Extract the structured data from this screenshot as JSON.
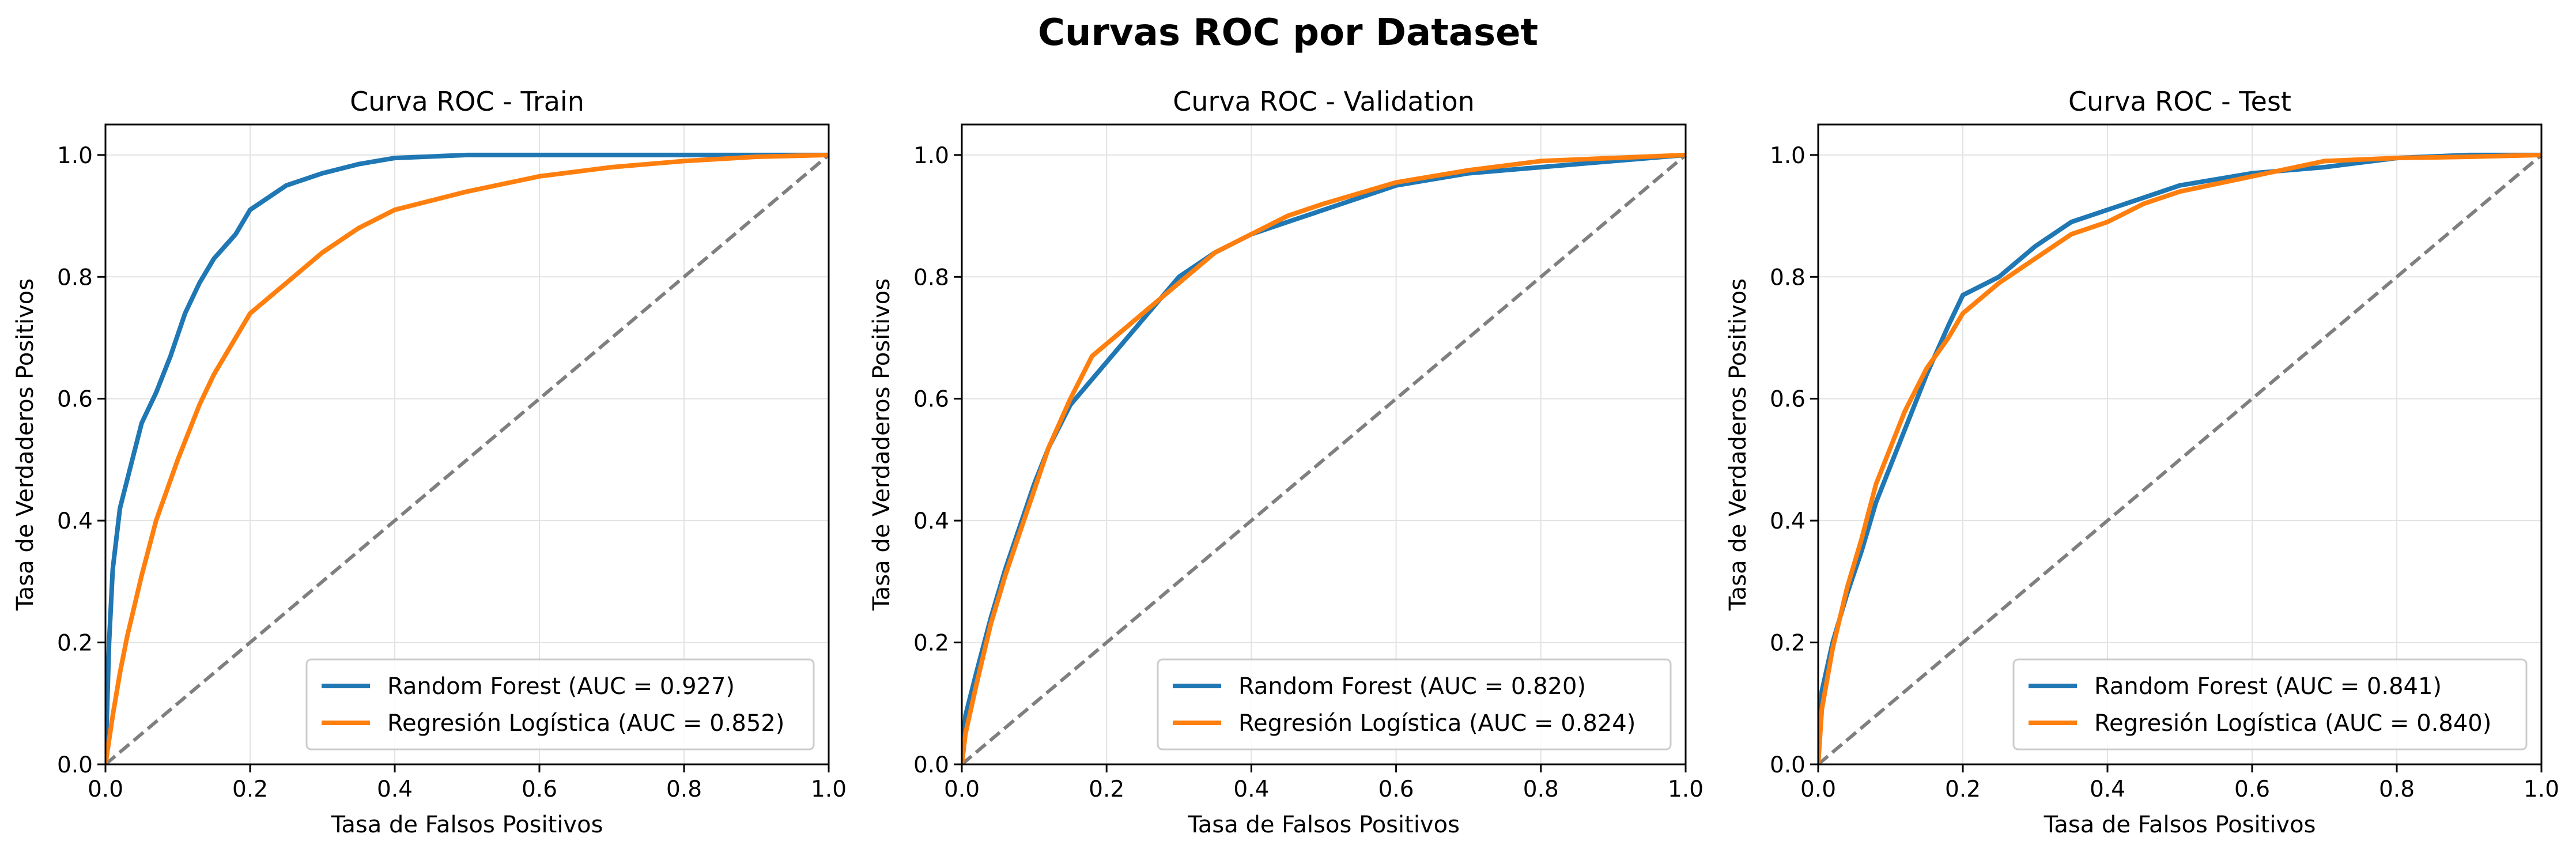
{
  "figure_title": "Curvas ROC por Dataset",
  "colors": {
    "random_forest": "#1f77b4",
    "logistic_regression": "#ff7f0e",
    "diagonal": "#7f7f7f",
    "grid": "#e3e3e3"
  },
  "chart_data": [
    {
      "type": "line",
      "title": "Curva ROC - Train",
      "xlabel": "Tasa de Falsos Positivos",
      "ylabel": "Tasa de Verdaderos Positivos",
      "xlim": [
        0,
        1
      ],
      "ylim": [
        0,
        1.05
      ],
      "xticks": [
        "0.0",
        "0.2",
        "0.4",
        "0.6",
        "0.8",
        "1.0"
      ],
      "yticks": [
        "0.0",
        "0.2",
        "0.4",
        "0.6",
        "0.8",
        "1.0"
      ],
      "grid": true,
      "legend_position": "lower-right",
      "series": [
        {
          "name": "Random Forest (AUC = 0.927)",
          "color": "#1f77b4",
          "points": [
            [
              0,
              0
            ],
            [
              0.005,
              0.2
            ],
            [
              0.01,
              0.32
            ],
            [
              0.02,
              0.42
            ],
            [
              0.035,
              0.49
            ],
            [
              0.05,
              0.56
            ],
            [
              0.07,
              0.61
            ],
            [
              0.09,
              0.67
            ],
            [
              0.11,
              0.74
            ],
            [
              0.13,
              0.79
            ],
            [
              0.15,
              0.83
            ],
            [
              0.18,
              0.87
            ],
            [
              0.2,
              0.91
            ],
            [
              0.25,
              0.95
            ],
            [
              0.3,
              0.97
            ],
            [
              0.35,
              0.985
            ],
            [
              0.4,
              0.995
            ],
            [
              0.5,
              1.0
            ],
            [
              0.6,
              1.0
            ],
            [
              0.8,
              1.0
            ],
            [
              1,
              1
            ]
          ]
        },
        {
          "name": "Regresión Logística (AUC = 0.852)",
          "color": "#ff7f0e",
          "points": [
            [
              0,
              0
            ],
            [
              0.01,
              0.08
            ],
            [
              0.02,
              0.15
            ],
            [
              0.03,
              0.21
            ],
            [
              0.05,
              0.31
            ],
            [
              0.07,
              0.4
            ],
            [
              0.1,
              0.5
            ],
            [
              0.13,
              0.59
            ],
            [
              0.15,
              0.64
            ],
            [
              0.18,
              0.7
            ],
            [
              0.2,
              0.74
            ],
            [
              0.25,
              0.79
            ],
            [
              0.3,
              0.84
            ],
            [
              0.35,
              0.88
            ],
            [
              0.4,
              0.91
            ],
            [
              0.5,
              0.94
            ],
            [
              0.6,
              0.965
            ],
            [
              0.7,
              0.98
            ],
            [
              0.8,
              0.99
            ],
            [
              0.9,
              0.997
            ],
            [
              1,
              1
            ]
          ]
        },
        {
          "name": "",
          "color": "#7f7f7f",
          "dashed": true,
          "points": [
            [
              0,
              0
            ],
            [
              1,
              1
            ]
          ]
        }
      ]
    },
    {
      "type": "line",
      "title": "Curva ROC - Validation",
      "xlabel": "Tasa de Falsos Positivos",
      "ylabel": "Tasa de Verdaderos Positivos",
      "xlim": [
        0,
        1
      ],
      "ylim": [
        0,
        1.05
      ],
      "xticks": [
        "0.0",
        "0.2",
        "0.4",
        "0.6",
        "0.8",
        "1.0"
      ],
      "yticks": [
        "0.0",
        "0.2",
        "0.4",
        "0.6",
        "0.8",
        "1.0"
      ],
      "grid": true,
      "legend_position": "lower-right",
      "series": [
        {
          "name": "Random Forest (AUC = 0.820)",
          "color": "#1f77b4",
          "points": [
            [
              0,
              0
            ],
            [
              0.005,
              0.08
            ],
            [
              0.02,
              0.15
            ],
            [
              0.04,
              0.24
            ],
            [
              0.06,
              0.32
            ],
            [
              0.08,
              0.39
            ],
            [
              0.1,
              0.46
            ],
            [
              0.12,
              0.52
            ],
            [
              0.15,
              0.59
            ],
            [
              0.2,
              0.66
            ],
            [
              0.25,
              0.73
            ],
            [
              0.3,
              0.8
            ],
            [
              0.35,
              0.84
            ],
            [
              0.4,
              0.87
            ],
            [
              0.45,
              0.89
            ],
            [
              0.5,
              0.91
            ],
            [
              0.6,
              0.95
            ],
            [
              0.7,
              0.97
            ],
            [
              0.8,
              0.98
            ],
            [
              0.9,
              0.99
            ],
            [
              1,
              1
            ]
          ]
        },
        {
          "name": "Regresión Logística (AUC = 0.824)",
          "color": "#ff7f0e",
          "points": [
            [
              0,
              0
            ],
            [
              0.005,
              0.05
            ],
            [
              0.02,
              0.13
            ],
            [
              0.04,
              0.23
            ],
            [
              0.06,
              0.31
            ],
            [
              0.08,
              0.38
            ],
            [
              0.1,
              0.45
            ],
            [
              0.12,
              0.52
            ],
            [
              0.15,
              0.6
            ],
            [
              0.18,
              0.67
            ],
            [
              0.2,
              0.69
            ],
            [
              0.25,
              0.74
            ],
            [
              0.3,
              0.79
            ],
            [
              0.35,
              0.84
            ],
            [
              0.4,
              0.87
            ],
            [
              0.45,
              0.9
            ],
            [
              0.5,
              0.92
            ],
            [
              0.6,
              0.955
            ],
            [
              0.7,
              0.975
            ],
            [
              0.8,
              0.99
            ],
            [
              0.9,
              0.995
            ],
            [
              1,
              1
            ]
          ]
        },
        {
          "name": "",
          "color": "#7f7f7f",
          "dashed": true,
          "points": [
            [
              0,
              0
            ],
            [
              1,
              1
            ]
          ]
        }
      ]
    },
    {
      "type": "line",
      "title": "Curva ROC - Test",
      "xlabel": "Tasa de Falsos Positivos",
      "ylabel": "Tasa de Verdaderos Positivos",
      "xlim": [
        0,
        1
      ],
      "ylim": [
        0,
        1.05
      ],
      "xticks": [
        "0.0",
        "0.2",
        "0.4",
        "0.6",
        "0.8",
        "1.0"
      ],
      "yticks": [
        "0.0",
        "0.2",
        "0.4",
        "0.6",
        "0.8",
        "1.0"
      ],
      "grid": true,
      "legend_position": "lower-right",
      "series": [
        {
          "name": "Random Forest (AUC = 0.841)",
          "color": "#1f77b4",
          "points": [
            [
              0,
              0
            ],
            [
              0.005,
              0.12
            ],
            [
              0.02,
              0.2
            ],
            [
              0.04,
              0.28
            ],
            [
              0.06,
              0.35
            ],
            [
              0.08,
              0.43
            ],
            [
              0.1,
              0.49
            ],
            [
              0.12,
              0.55
            ],
            [
              0.15,
              0.64
            ],
            [
              0.18,
              0.72
            ],
            [
              0.2,
              0.77
            ],
            [
              0.25,
              0.8
            ],
            [
              0.3,
              0.85
            ],
            [
              0.35,
              0.89
            ],
            [
              0.4,
              0.91
            ],
            [
              0.45,
              0.93
            ],
            [
              0.5,
              0.95
            ],
            [
              0.6,
              0.97
            ],
            [
              0.7,
              0.98
            ],
            [
              0.8,
              0.995
            ],
            [
              0.9,
              1.0
            ],
            [
              1,
              1
            ]
          ]
        },
        {
          "name": "Regresión Logística (AUC = 0.840)",
          "color": "#ff7f0e",
          "points": [
            [
              0,
              0
            ],
            [
              0.005,
              0.09
            ],
            [
              0.02,
              0.19
            ],
            [
              0.04,
              0.29
            ],
            [
              0.06,
              0.37
            ],
            [
              0.08,
              0.46
            ],
            [
              0.1,
              0.52
            ],
            [
              0.12,
              0.58
            ],
            [
              0.15,
              0.65
            ],
            [
              0.18,
              0.7
            ],
            [
              0.2,
              0.74
            ],
            [
              0.25,
              0.79
            ],
            [
              0.3,
              0.83
            ],
            [
              0.35,
              0.87
            ],
            [
              0.4,
              0.89
            ],
            [
              0.45,
              0.92
            ],
            [
              0.5,
              0.94
            ],
            [
              0.6,
              0.965
            ],
            [
              0.7,
              0.99
            ],
            [
              0.8,
              0.995
            ],
            [
              0.9,
              0.997
            ],
            [
              1,
              1
            ]
          ]
        },
        {
          "name": "",
          "color": "#7f7f7f",
          "dashed": true,
          "points": [
            [
              0,
              0
            ],
            [
              1,
              1
            ]
          ]
        }
      ]
    }
  ]
}
